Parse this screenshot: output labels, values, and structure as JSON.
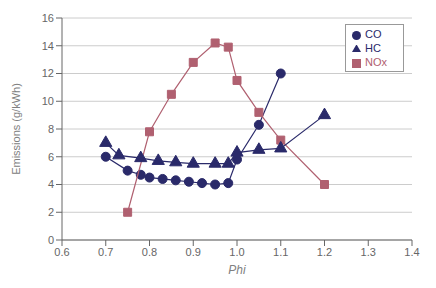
{
  "chart_data": {
    "type": "line",
    "xlabel": "Phi",
    "ylabel": "Emissions (g/kWh)",
    "xlim": [
      0.6,
      1.4
    ],
    "ylim": [
      0,
      16
    ],
    "xticks": [
      0.6,
      0.7,
      0.8,
      0.9,
      {
        "value": 1,
        "label": "1.0"
      },
      1.1,
      1.2,
      1.3,
      1.4
    ],
    "yticks": [
      0,
      2,
      4,
      6,
      8,
      10,
      12,
      14,
      16
    ],
    "grid": "y",
    "legend": "upper right",
    "series": [
      {
        "name": "CO",
        "color": "#2a2a6a",
        "marker": "circle",
        "x": [
          0.7,
          0.75,
          0.78,
          0.8,
          0.83,
          0.86,
          0.89,
          0.92,
          0.95,
          0.98,
          1.0,
          1.05,
          1.1
        ],
        "values": [
          6.0,
          5.0,
          4.7,
          4.5,
          4.4,
          4.3,
          4.2,
          4.1,
          4.0,
          4.1,
          5.8,
          8.3,
          12.0
        ]
      },
      {
        "name": "NOx",
        "color": "#b06070",
        "marker": "square",
        "x": [
          0.75,
          0.8,
          0.85,
          0.9,
          0.95,
          0.98,
          1.0,
          1.05,
          1.1,
          1.2
        ],
        "values": [
          2.0,
          7.8,
          10.5,
          12.8,
          14.2,
          13.9,
          11.5,
          9.2,
          7.2,
          4.0
        ]
      },
      {
        "name": "HC",
        "color": "#2a2a6a",
        "marker": "triangle",
        "x": [
          0.7,
          0.73,
          0.78,
          0.82,
          0.86,
          0.9,
          0.95,
          0.98,
          1.0,
          1.05,
          1.1,
          1.2
        ],
        "values": [
          7.0,
          6.1,
          5.9,
          5.7,
          5.6,
          5.5,
          5.5,
          5.5,
          6.3,
          6.5,
          6.6,
          9.0
        ]
      }
    ]
  }
}
